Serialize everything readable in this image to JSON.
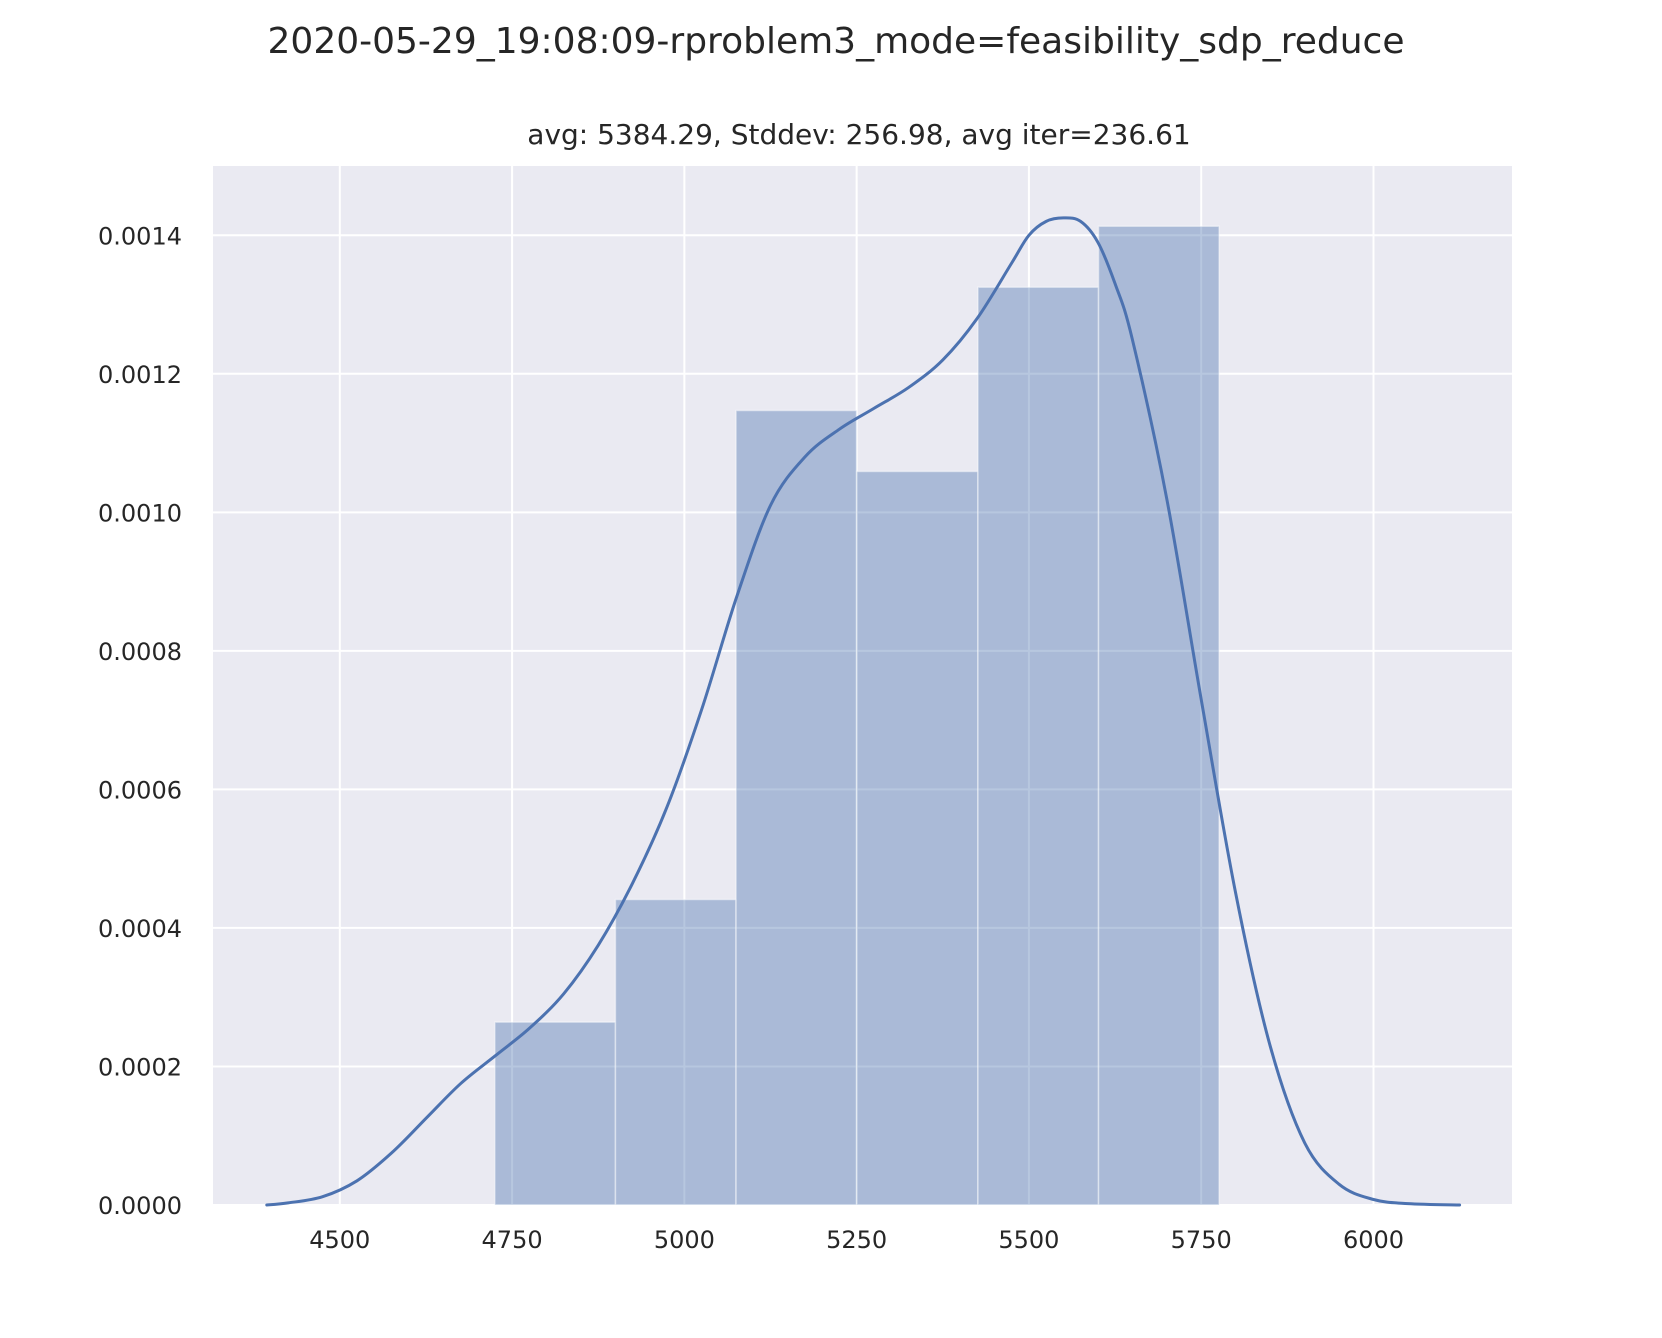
{
  "chart_data": {
    "type": "histogram",
    "title": "2020-05-29_19:08:09-rproblem3_mode=feasibility_sdp_reduce",
    "subtitle": "avg: 5384.29, Stddev: 256.98, avg iter=236.61",
    "xlabel": "",
    "ylabel": "",
    "xlim": [
      4316,
      6201
    ],
    "ylim": [
      0,
      0.0015
    ],
    "x_ticks": [
      4500,
      4750,
      5000,
      5250,
      5500,
      5750,
      6000
    ],
    "y_ticks": [
      0,
      0.0002,
      0.0004,
      0.0006,
      0.0008,
      0.001,
      0.0012,
      0.0014
    ],
    "x_tick_labels": [
      "4500",
      "4750",
      "5000",
      "5250",
      "5500",
      "5750",
      "6000"
    ],
    "y_tick_labels": [
      "0.0000",
      "0.0002",
      "0.0004",
      "0.0006",
      "0.0008",
      "0.0010",
      "0.0012",
      "0.0014"
    ],
    "grid": true,
    "bins": [
      {
        "x0": 4725,
        "x1": 4900,
        "density": 0.000264
      },
      {
        "x0": 4900,
        "x1": 5075,
        "density": 0.000441
      },
      {
        "x0": 5075,
        "x1": 5250,
        "density": 0.001147
      },
      {
        "x0": 5250,
        "x1": 5426,
        "density": 0.001059
      },
      {
        "x0": 5426,
        "x1": 5601,
        "density": 0.001325
      },
      {
        "x0": 5601,
        "x1": 5776,
        "density": 0.001413
      }
    ],
    "kde": {
      "x": [
        4394,
        4425,
        4475,
        4525,
        4575,
        4625,
        4675,
        4725,
        4775,
        4825,
        4875,
        4925,
        4975,
        5025,
        5075,
        5125,
        5175,
        5225,
        5275,
        5325,
        5375,
        5425,
        5475,
        5500,
        5525,
        5550,
        5575,
        5600,
        5625,
        5650,
        5700,
        5750,
        5800,
        5850,
        5900,
        5950,
        6000,
        6050,
        6125
      ],
      "y": [
        0.0,
        3e-06,
        1.2e-05,
        3.5e-05,
        7.5e-05,
        0.000125,
        0.000175,
        0.000215,
        0.000255,
        0.000305,
        0.000375,
        0.000465,
        0.000575,
        0.000715,
        0.000875,
        0.00101,
        0.00108,
        0.00112,
        0.00115,
        0.00118,
        0.00122,
        0.00128,
        0.00136,
        0.0014,
        0.00142,
        0.001425,
        0.00142,
        0.00139,
        0.00133,
        0.00125,
        0.00102,
        0.00073,
        0.00045,
        0.00023,
        9e-05,
        3e-05,
        8e-06,
        2e-06,
        0.0
      ]
    },
    "colors": {
      "background": "#eaeaf2",
      "grid": "#ffffff",
      "bar": "#4c72b0",
      "bar_opacity": 0.4,
      "line": "#4c72b0"
    }
  }
}
